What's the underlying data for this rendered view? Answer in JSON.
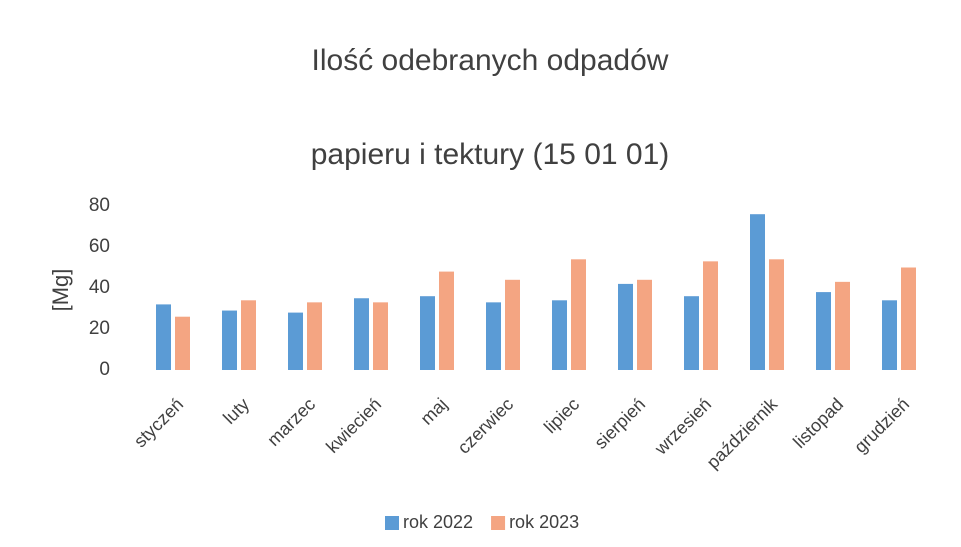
{
  "chart_data": {
    "type": "bar",
    "title": "Ilość odebranych odpadów",
    "subtitle": "papieru i tektury (15 01 01)",
    "y_label": "[Mg]",
    "categories": [
      "styczeń",
      "luty",
      "marzec",
      "kwiecień",
      "maj",
      "czerwiec",
      "lipiec",
      "sierpień",
      "wrzesień",
      "październik",
      "listopad",
      "grudzień"
    ],
    "series": [
      {
        "name": "rok 2022",
        "color": "#5b9bd5",
        "values": [
          32,
          29,
          28,
          35,
          36,
          33,
          34,
          42,
          36,
          76,
          38,
          34
        ]
      },
      {
        "name": "rok 2023",
        "color": "#f4a582",
        "values": [
          26,
          34,
          33,
          33,
          48,
          44,
          54,
          44,
          53,
          54,
          43,
          50
        ]
      }
    ],
    "ylim": [
      0,
      80
    ],
    "yticks": [
      0,
      20,
      40,
      60,
      80
    ],
    "grid": false,
    "legend": "bottom"
  }
}
